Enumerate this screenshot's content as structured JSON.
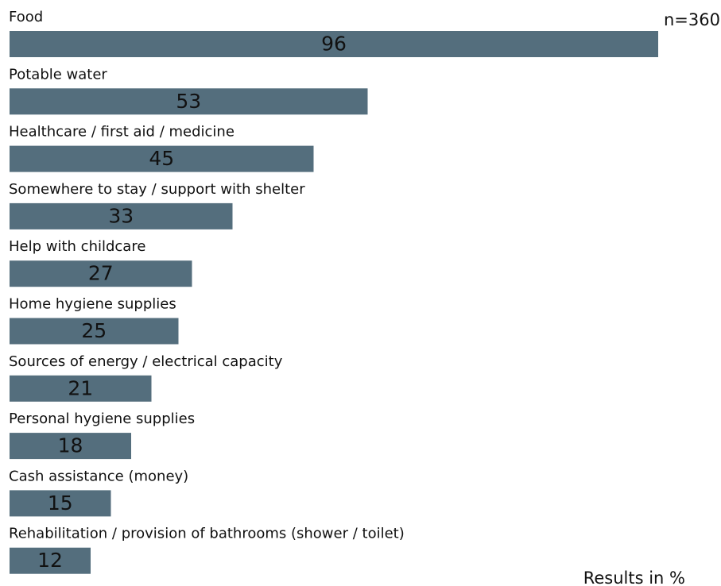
{
  "chart_data": {
    "type": "bar",
    "orientation": "horizontal",
    "categories": [
      "Food",
      "Potable water",
      "Healthcare / first aid / medicine",
      "Somewhere to stay / support with shelter",
      "Help with childcare",
      "Home hygiene supplies",
      "Sources of energy / electrical capacity",
      "Personal hygiene supplies",
      "Cash assistance (money)",
      "Rehabilitation / provision of bathrooms (shower / toilet)"
    ],
    "values": [
      96,
      53,
      45,
      33,
      27,
      25,
      21,
      18,
      15,
      12
    ],
    "color": "#546e7d",
    "annotations": [
      "n=360",
      "Results in %"
    ]
  }
}
